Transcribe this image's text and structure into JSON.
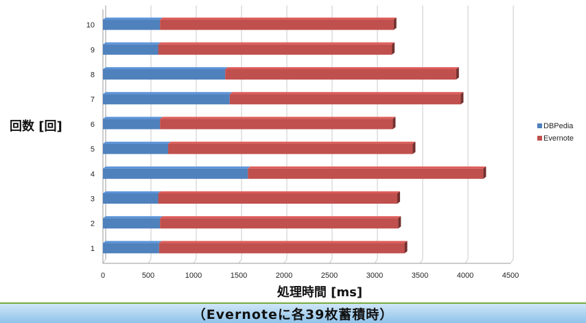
{
  "chart_data": {
    "type": "bar",
    "orientation": "horizontal",
    "stacked": true,
    "categories": [
      "1",
      "2",
      "3",
      "4",
      "5",
      "6",
      "7",
      "8",
      "9",
      "10"
    ],
    "series": [
      {
        "name": "DBPedia",
        "color": "#4f81bd",
        "values": [
          620,
          630,
          610,
          1600,
          720,
          630,
          1400,
          1350,
          610,
          630
        ]
      },
      {
        "name": "Evernote",
        "color": "#c0504d",
        "values": [
          2710,
          2630,
          2640,
          2600,
          2700,
          2570,
          2550,
          2550,
          2580,
          2580
        ]
      }
    ],
    "xlabel": "処理時間 [ms]",
    "ylabel": "回数 [回]",
    "xlim": [
      0,
      4500
    ],
    "xticks": [
      "0",
      "500",
      "1000",
      "1500",
      "2000",
      "2500",
      "3000",
      "3500",
      "4000",
      "4500"
    ],
    "grid": "vertical",
    "legend": "right"
  },
  "caption": "（Evernoteに各39枚蓄積時）"
}
